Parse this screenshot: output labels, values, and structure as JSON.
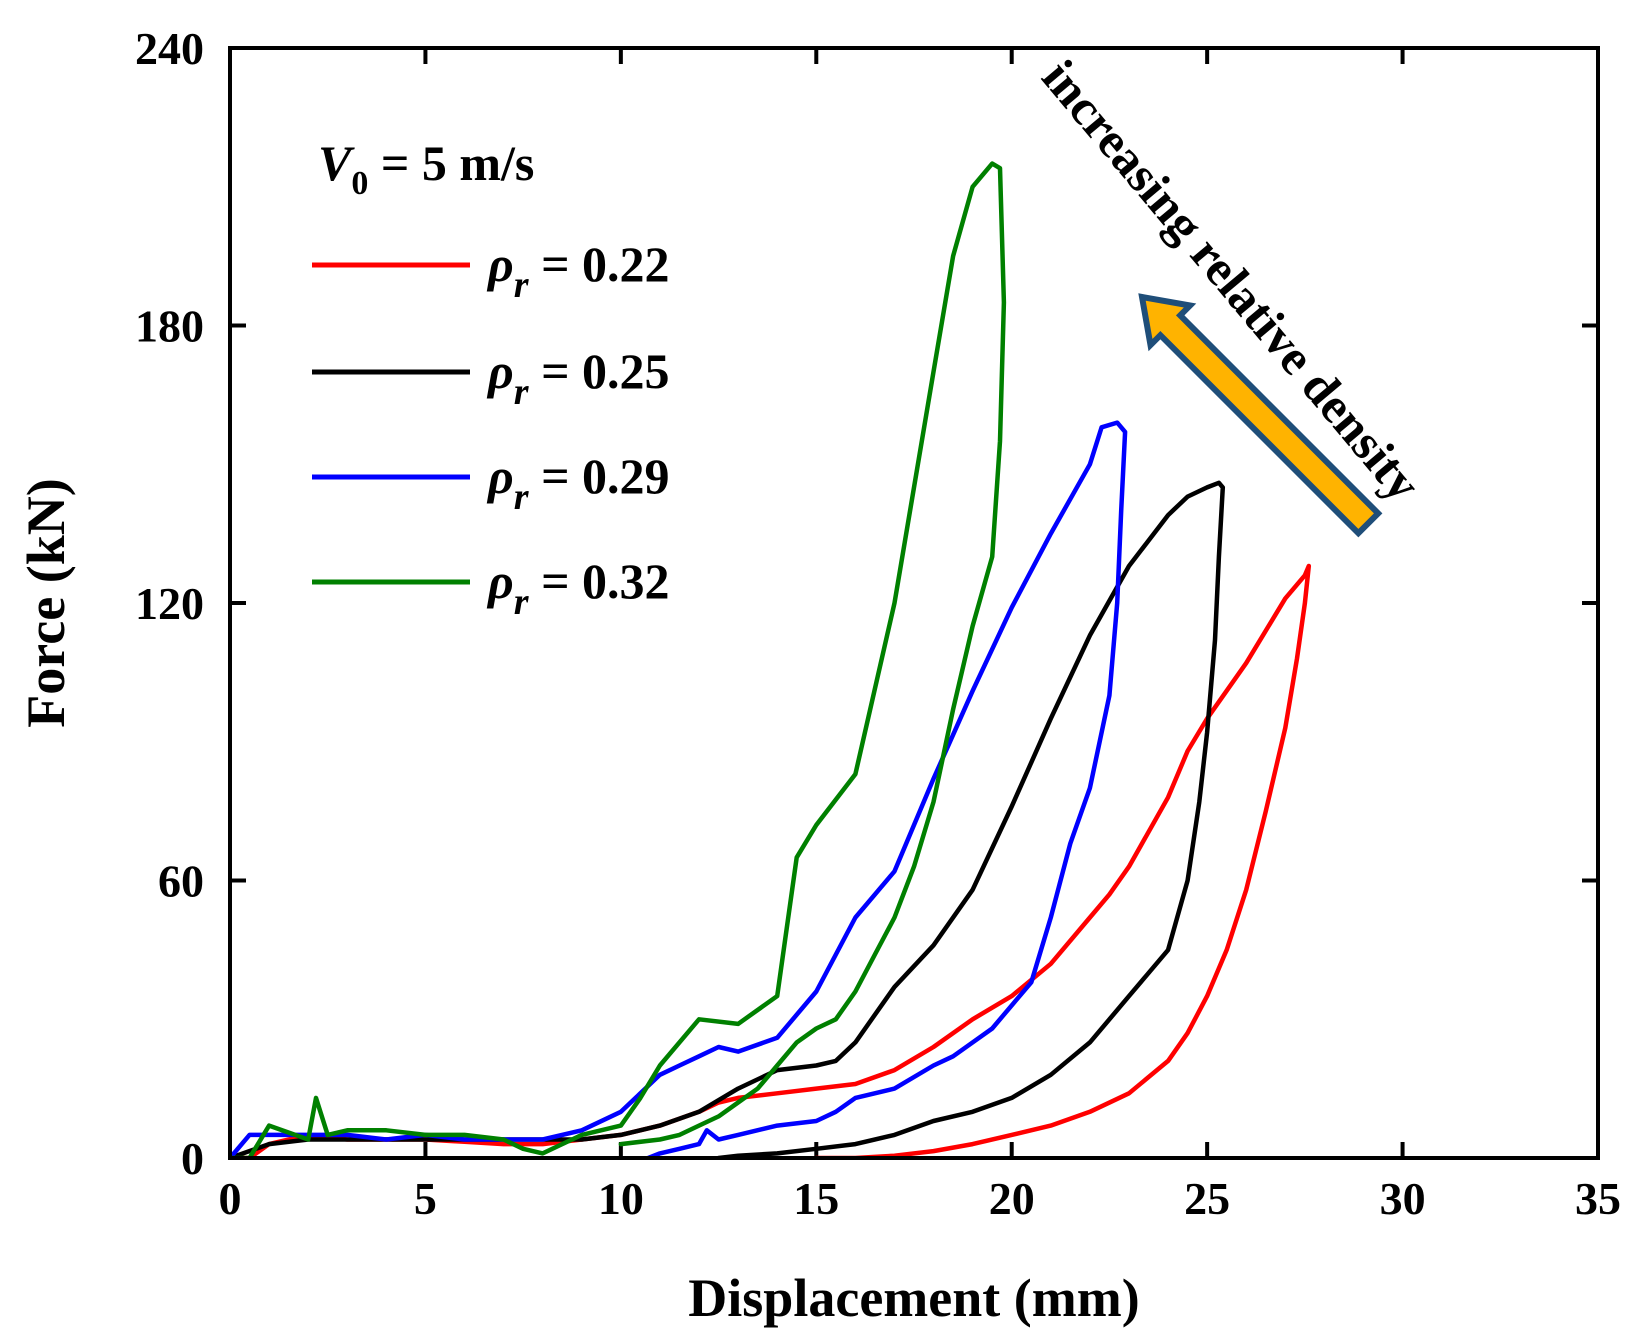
{
  "chart_data": {
    "type": "line",
    "title": "",
    "xlabel": "Displacement (mm)",
    "ylabel": "Force (kN)",
    "xlim": [
      0,
      35
    ],
    "ylim": [
      0,
      240
    ],
    "xticks": [
      0,
      5,
      10,
      15,
      20,
      25,
      30,
      35
    ],
    "yticks": [
      0,
      60,
      120,
      180,
      240
    ],
    "grid": false,
    "legend": {
      "placement": "top-left",
      "header_symbol": "V",
      "header_subscript": "0",
      "header_value": " = 5 m/s",
      "entry_symbol": "ρ",
      "entry_subscript": "r"
    },
    "annotation": {
      "text": "increasing relative density",
      "arrow_fill": "#FFB300",
      "arrow_stroke": "#1F4E79"
    },
    "series": [
      {
        "name": "ρr = 0.22",
        "value_label": " = 0.22",
        "color": "#FF0000",
        "x": [
          0,
          0.5,
          1,
          2,
          3,
          4,
          5,
          6,
          7,
          8,
          9,
          10,
          11,
          12,
          12.5,
          13,
          14,
          15,
          16,
          17,
          18,
          19,
          20,
          21,
          22,
          22.5,
          23,
          24,
          24.5,
          25,
          26,
          27,
          27.5,
          27.6,
          27.5,
          27.3,
          27,
          26.5,
          26,
          25.5,
          25,
          24.5,
          24,
          23,
          22,
          21,
          20,
          19,
          18,
          17,
          16,
          15
        ],
        "y": [
          0,
          0,
          3,
          5,
          4,
          4,
          4,
          3.5,
          3,
          3,
          4,
          5,
          7,
          10,
          12,
          13,
          14,
          15,
          16,
          19,
          24,
          30,
          35,
          42,
          52,
          57,
          63,
          78,
          88,
          95,
          107,
          121,
          126,
          128,
          120,
          108,
          93,
          75,
          58,
          45,
          35,
          27,
          21,
          14,
          10,
          7,
          5,
          3,
          1.5,
          0.5,
          0,
          0
        ]
      },
      {
        "name": "ρr = 0.25",
        "value_label": " = 0.25",
        "color": "#000000",
        "x": [
          0,
          1,
          2,
          3,
          4,
          5,
          6,
          7,
          8,
          9,
          10,
          11,
          12,
          13,
          14,
          15,
          15.5,
          16,
          17,
          18,
          19,
          20,
          21,
          22,
          23,
          24,
          24.5,
          25,
          25.3,
          25.4,
          25.3,
          25.2,
          25,
          24.8,
          24.5,
          24,
          23,
          22,
          21,
          20,
          19,
          18,
          17,
          16,
          15,
          14,
          13,
          12.5
        ],
        "y": [
          0,
          3,
          4,
          4,
          4,
          4,
          4,
          4,
          4,
          4,
          5,
          7,
          10,
          15,
          19,
          20,
          21,
          25,
          37,
          46,
          58,
          76,
          95,
          113,
          128,
          139,
          143,
          145,
          146,
          145,
          130,
          112,
          92,
          77,
          60,
          45,
          35,
          25,
          18,
          13,
          10,
          8,
          5,
          3,
          2,
          1,
          0.5,
          0
        ]
      },
      {
        "name": "ρr = 0.29",
        "value_label": " = 0.29",
        "color": "#0000FF",
        "x": [
          0,
          0.5,
          1,
          2,
          3,
          4,
          5,
          6,
          7,
          8,
          9,
          10,
          10.5,
          11,
          11.5,
          12,
          12.5,
          13,
          14,
          15,
          16,
          17,
          18,
          19,
          20,
          21,
          22,
          22.3,
          22.7,
          22.9,
          22.8,
          22.7,
          22.5,
          22,
          21.5,
          21,
          20.5,
          20,
          19.5,
          19,
          18.5,
          18,
          17,
          16,
          15.5,
          15,
          14,
          13,
          12.5,
          12.2,
          12,
          11.5,
          11,
          10.7
        ],
        "y": [
          0,
          5,
          5,
          5,
          5,
          4,
          5,
          4,
          4,
          4,
          6,
          10,
          14,
          18,
          20,
          22,
          24,
          23,
          26,
          36,
          52,
          62,
          82,
          101,
          119,
          135,
          150,
          158,
          159,
          157,
          140,
          120,
          100,
          80,
          68,
          52,
          38,
          33,
          28,
          25,
          22,
          20,
          15,
          13,
          10,
          8,
          7,
          5,
          4,
          6,
          3,
          2,
          1,
          0
        ]
      },
      {
        "name": "ρr = 0.32",
        "value_label": " = 0.32",
        "color": "#008000",
        "x": [
          0,
          0.5,
          1,
          2,
          2.2,
          2.5,
          3,
          4,
          5,
          6,
          7,
          7.5,
          8,
          8.5,
          9,
          10,
          10.5,
          11,
          12,
          13,
          14,
          14.5,
          15,
          16,
          17,
          18,
          18.5,
          19,
          19.5,
          19.7,
          19.8,
          19.7,
          19.5,
          19,
          18.5,
          18,
          17.5,
          17,
          16.5,
          16,
          15.5,
          15,
          14.5,
          14,
          13.5,
          13,
          12.5,
          12,
          11.5,
          11,
          10
        ],
        "y": [
          0,
          0,
          7,
          4,
          13,
          5,
          6,
          6,
          5,
          5,
          4,
          2,
          1,
          3,
          5,
          7,
          13,
          20,
          30,
          29,
          35,
          65,
          72,
          83,
          120,
          170,
          195,
          210,
          215,
          214,
          185,
          155,
          130,
          115,
          97,
          77,
          63,
          52,
          44,
          36,
          30,
          28,
          25,
          20,
          15,
          12,
          9,
          7,
          5,
          4,
          3
        ]
      }
    ]
  }
}
